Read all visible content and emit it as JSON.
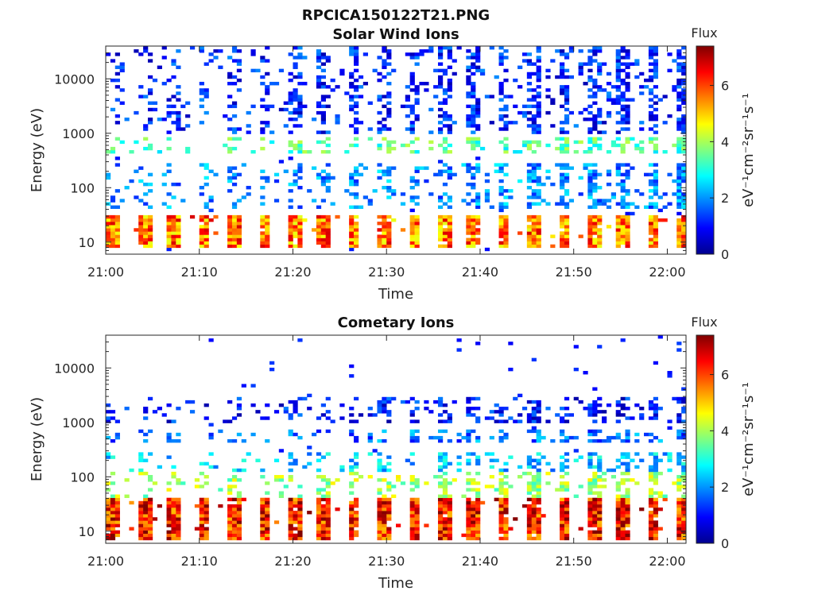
{
  "figure": {
    "title": "RPCICA150122T21.PNG"
  },
  "chart_data": [
    {
      "type": "heatmap",
      "title": "Solar Wind Ions",
      "xlabel": "Time",
      "ylabel": "Energy (eV)",
      "x_range": [
        "21:00",
        "22:02"
      ],
      "x_ticks": [
        "21:00",
        "21:10",
        "21:20",
        "21:30",
        "21:40",
        "21:50",
        "22:00"
      ],
      "y_scale": "log",
      "ylim": [
        6,
        40000
      ],
      "y_ticks": [
        {
          "value": 10,
          "label": "10"
        },
        {
          "value": 100,
          "label": "100"
        },
        {
          "value": 1000,
          "label": "1000"
        },
        {
          "value": 10000,
          "label": "10000"
        }
      ],
      "colorbar": {
        "title": "Flux",
        "label": "eV⁻¹cm⁻²sr⁻¹s⁻¹",
        "range": [
          0,
          7.4
        ],
        "ticks": [
          "0",
          "2",
          "4",
          "6"
        ],
        "colormap": "jet"
      },
      "sweep_period_min": 3.2,
      "bands": [
        {
          "e_min": 8,
          "e_max": 30,
          "flux": 5.6
        },
        {
          "e_min": 400,
          "e_max": 800,
          "flux": 3.2
        },
        {
          "e_min": 40,
          "e_max": 300,
          "flux": 1.8
        },
        {
          "e_min": 1000,
          "e_max": 40000,
          "flux": 1.0
        }
      ]
    },
    {
      "type": "heatmap",
      "title": "Cometary Ions",
      "xlabel": "Time",
      "ylabel": "Energy (eV)",
      "x_range": [
        "21:00",
        "22:02"
      ],
      "x_ticks": [
        "21:00",
        "21:10",
        "21:20",
        "21:30",
        "21:40",
        "21:50",
        "22:00"
      ],
      "y_scale": "log",
      "ylim": [
        6,
        40000
      ],
      "y_ticks": [
        {
          "value": 10,
          "label": "10"
        },
        {
          "value": 100,
          "label": "100"
        },
        {
          "value": 1000,
          "label": "1000"
        },
        {
          "value": 10000,
          "label": "10000"
        }
      ],
      "colorbar": {
        "title": "Flux",
        "label": "eV⁻¹cm⁻²sr⁻¹s⁻¹",
        "range": [
          0,
          7.4
        ],
        "ticks": [
          "0",
          "2",
          "4",
          "6"
        ],
        "colormap": "jet"
      },
      "sweep_period_min": 3.2,
      "bands": [
        {
          "e_min": 7,
          "e_max": 40,
          "flux": 6.3
        },
        {
          "e_min": 40,
          "e_max": 120,
          "flux": 3.8
        },
        {
          "e_min": 120,
          "e_max": 300,
          "flux": 2.2
        },
        {
          "e_min": 400,
          "e_max": 700,
          "flux": 1.6
        },
        {
          "e_min": 1000,
          "e_max": 3000,
          "flux": 0.9
        }
      ]
    }
  ]
}
